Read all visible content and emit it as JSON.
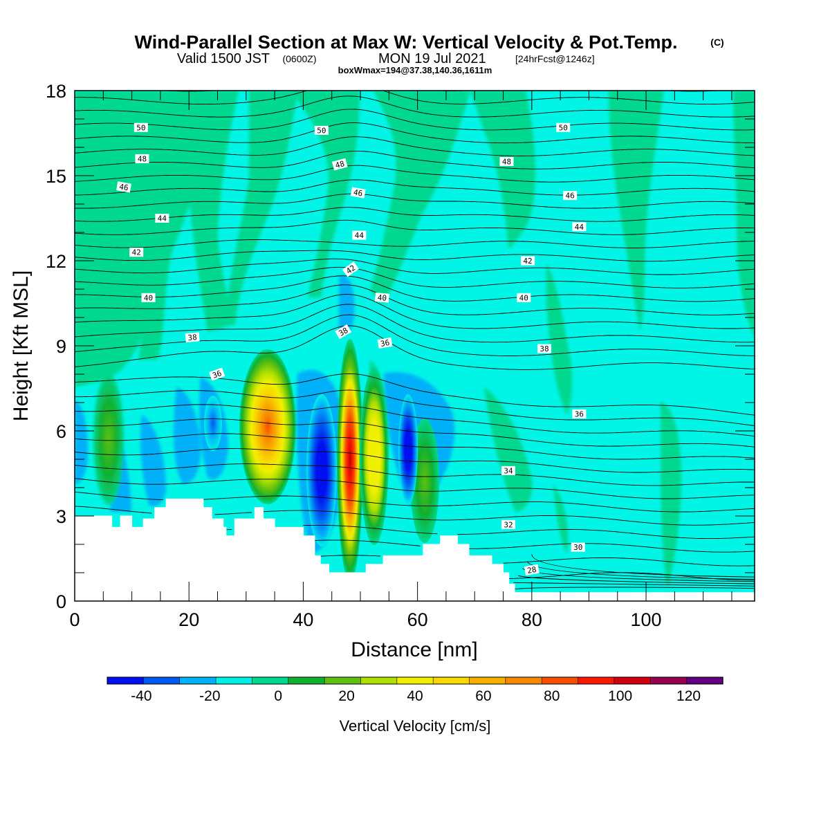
{
  "title": {
    "main": "Wind-Parallel Section at Max W: Vertical Velocity & Pot.Temp.",
    "copyright": "(C)",
    "valid_prefix": "Valid 1500 JST",
    "valid_zulu": "(0600Z)",
    "valid_date": "MON 19 Jul 2021",
    "forecast": "[24hrFcst@1246z]",
    "box": "boxWmax=194@37.38,140.36,1611m"
  },
  "chart_data": {
    "type": "heatmap",
    "xlabel": "Distance [nm]",
    "ylabel": "Height [Kft MSL]",
    "xlim": [
      0,
      119
    ],
    "ylim": [
      0,
      18
    ],
    "x_ticks": [
      "0",
      "20",
      "40",
      "60",
      "80",
      "100"
    ],
    "x_tick_values": [
      0,
      20,
      40,
      60,
      80,
      100
    ],
    "y_ticks": [
      "0",
      "3",
      "6",
      "9",
      "12",
      "15",
      "18"
    ],
    "y_tick_values": [
      0,
      3,
      6,
      9,
      12,
      15,
      18
    ],
    "background_color": "#00f5e6",
    "colorbar": {
      "label": "Vertical Velocity [cm/s]",
      "tick_labels": [
        "-40",
        "-20",
        "0",
        "20",
        "40",
        "60",
        "80",
        "100",
        "120"
      ],
      "tick_values": [
        -40,
        -20,
        0,
        20,
        40,
        60,
        80,
        100,
        120
      ],
      "range": [
        -50,
        130
      ],
      "step": 10,
      "colors": [
        "#0010f0",
        "#0058f0",
        "#00b0f8",
        "#00f0e6",
        "#00d890",
        "#10b030",
        "#60c010",
        "#b0e000",
        "#f0f000",
        "#f8d800",
        "#f8b000",
        "#f88800",
        "#f85000",
        "#f81800",
        "#d00010",
        "#980050",
        "#600080"
      ]
    },
    "terrain_kft": [
      [
        0,
        3.0
      ],
      [
        6.5,
        3.0
      ],
      [
        6.5,
        2.6
      ],
      [
        8,
        2.6
      ],
      [
        8,
        3.0
      ],
      [
        10,
        3.0
      ],
      [
        10,
        2.6
      ],
      [
        12,
        2.6
      ],
      [
        12,
        2.9
      ],
      [
        14,
        2.9
      ],
      [
        14,
        3.3
      ],
      [
        16,
        3.3
      ],
      [
        16,
        3.6
      ],
      [
        22.5,
        3.6
      ],
      [
        22.5,
        3.3
      ],
      [
        24,
        3.3
      ],
      [
        24,
        2.9
      ],
      [
        26,
        2.9
      ],
      [
        26,
        2.6
      ],
      [
        26.5,
        2.6
      ],
      [
        26.5,
        2.3
      ],
      [
        28,
        2.3
      ],
      [
        28,
        2.9
      ],
      [
        31.5,
        2.9
      ],
      [
        31.5,
        3.3
      ],
      [
        33,
        3.3
      ],
      [
        33,
        2.9
      ],
      [
        35,
        2.9
      ],
      [
        35,
        2.6
      ],
      [
        40,
        2.6
      ],
      [
        40,
        2.3
      ],
      [
        42,
        2.3
      ],
      [
        42,
        1.6
      ],
      [
        43,
        1.6
      ],
      [
        43,
        1.3
      ],
      [
        44.5,
        1.3
      ],
      [
        44.5,
        1.0
      ],
      [
        51,
        1.0
      ],
      [
        51,
        1.3
      ],
      [
        54,
        1.3
      ],
      [
        54,
        1.6
      ],
      [
        61,
        1.6
      ],
      [
        61,
        2.0
      ],
      [
        64,
        2.0
      ],
      [
        64,
        2.3
      ],
      [
        67,
        2.3
      ],
      [
        67,
        2.0
      ],
      [
        69,
        2.0
      ],
      [
        69,
        1.6
      ],
      [
        73,
        1.6
      ],
      [
        73,
        1.3
      ],
      [
        75,
        1.3
      ],
      [
        75,
        1.0
      ],
      [
        76,
        1.0
      ],
      [
        76,
        0.6
      ],
      [
        77,
        0.6
      ],
      [
        77,
        0.3
      ],
      [
        80,
        0.3
      ],
      [
        119,
        0.3
      ]
    ],
    "contour_labels": [
      {
        "text": "50",
        "x": 11.6,
        "y": 16.7,
        "angle": 0
      },
      {
        "text": "50",
        "x": 43.2,
        "y": 16.6,
        "angle": 0
      },
      {
        "text": "50",
        "x": 85.5,
        "y": 16.7,
        "angle": 0
      },
      {
        "text": "48",
        "x": 11.8,
        "y": 15.6,
        "angle": 0
      },
      {
        "text": "48",
        "x": 46.4,
        "y": 15.4,
        "angle": -15
      },
      {
        "text": "48",
        "x": 75.6,
        "y": 15.5,
        "angle": 0
      },
      {
        "text": "46",
        "x": 8.6,
        "y": 14.6,
        "angle": 10
      },
      {
        "text": "46",
        "x": 49.6,
        "y": 14.4,
        "angle": 10
      },
      {
        "text": "46",
        "x": 86.7,
        "y": 14.3,
        "angle": 0
      },
      {
        "text": "44",
        "x": 15.3,
        "y": 13.5,
        "angle": 0
      },
      {
        "text": "44",
        "x": 49.8,
        "y": 12.9,
        "angle": 0
      },
      {
        "text": "44",
        "x": 88.3,
        "y": 13.2,
        "angle": 0
      },
      {
        "text": "42",
        "x": 10.8,
        "y": 12.3,
        "angle": 0
      },
      {
        "text": "42",
        "x": 48.3,
        "y": 11.7,
        "angle": -35
      },
      {
        "text": "42",
        "x": 79.3,
        "y": 12.0,
        "angle": 0
      },
      {
        "text": "40",
        "x": 12.9,
        "y": 10.7,
        "angle": 0
      },
      {
        "text": "40",
        "x": 53.8,
        "y": 10.7,
        "angle": 5
      },
      {
        "text": "40",
        "x": 78.6,
        "y": 10.7,
        "angle": 0
      },
      {
        "text": "38",
        "x": 20.6,
        "y": 9.3,
        "angle": -5
      },
      {
        "text": "38",
        "x": 47.0,
        "y": 9.5,
        "angle": -30
      },
      {
        "text": "38",
        "x": 82.2,
        "y": 8.9,
        "angle": 0
      },
      {
        "text": "36",
        "x": 24.9,
        "y": 8.0,
        "angle": -20
      },
      {
        "text": "36",
        "x": 54.3,
        "y": 9.1,
        "angle": -10
      },
      {
        "text": "36",
        "x": 88.3,
        "y": 6.6,
        "angle": 0
      },
      {
        "text": "34",
        "x": 75.9,
        "y": 4.6,
        "angle": 0
      },
      {
        "text": "32",
        "x": 75.9,
        "y": 2.7,
        "angle": 0
      },
      {
        "text": "30",
        "x": 88.1,
        "y": 1.9,
        "angle": 0
      },
      {
        "text": "28",
        "x": 80.0,
        "y": 1.1,
        "angle": -10
      }
    ],
    "features": [
      {
        "kind": "updraft",
        "x": 34,
        "y": 6.0,
        "sx": 2.4,
        "sy": 2.3,
        "peak": 85
      },
      {
        "kind": "updraft",
        "x": 48.2,
        "y": 4.6,
        "sx": 0.9,
        "sy": 3.0,
        "peak": 110
      },
      {
        "kind": "updraft",
        "x": 52.3,
        "y": 4.8,
        "sx": 1.2,
        "sy": 2.2,
        "peak": 45
      },
      {
        "kind": "updraft",
        "x": 61.2,
        "y": 4.2,
        "sx": 1.3,
        "sy": 1.6,
        "peak": 28
      },
      {
        "kind": "updraft",
        "x": 6.0,
        "y": 5.5,
        "sx": 1.1,
        "sy": 1.6,
        "peak": 22
      },
      {
        "kind": "downdraft",
        "x": 43.6,
        "y": 5.0,
        "sx": 1.4,
        "sy": 2.3,
        "peak": -38
      },
      {
        "kind": "downdraft",
        "x": 58.4,
        "y": 5.4,
        "sx": 0.9,
        "sy": 1.8,
        "peak": -40
      },
      {
        "kind": "downdraft",
        "x": 24.5,
        "y": 6.4,
        "sx": 1.1,
        "sy": 1.2,
        "peak": -24
      },
      {
        "kind": "downdraft",
        "x": 19.5,
        "y": 5.3,
        "sx": 1.2,
        "sy": 1.3,
        "peak": -15
      }
    ]
  }
}
